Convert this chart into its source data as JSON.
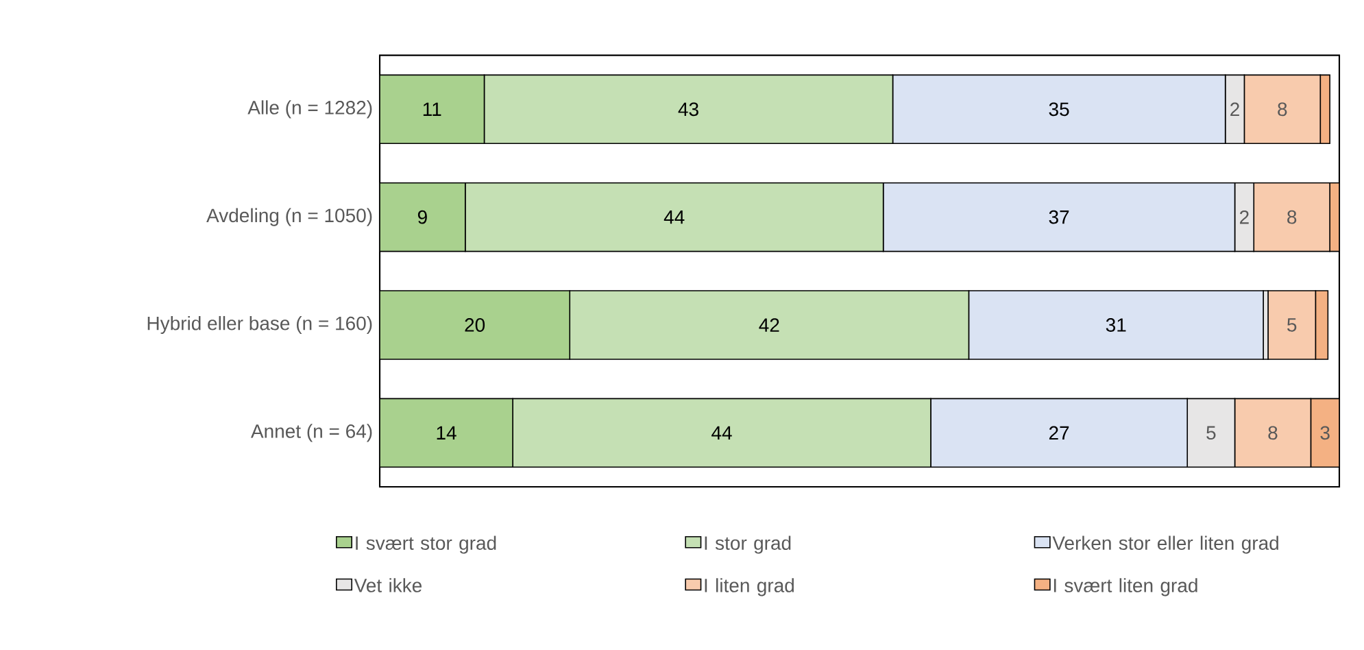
{
  "chart_data": {
    "type": "bar",
    "orientation": "horizontal",
    "stacked": true,
    "legend": "bottom",
    "categories": [
      "Alle (n = 1282)",
      "Avdeling (n = 1050)",
      "Hybrid eller base (n = 160)",
      "Annet (n = 64)"
    ],
    "series": [
      {
        "name": "I svært stor grad",
        "color": "#a9d18e",
        "values": [
          11,
          9,
          20,
          14
        ],
        "value_labels": [
          "11",
          "9",
          "20",
          "14"
        ]
      },
      {
        "name": "I stor grad",
        "color": "#c5e0b4",
        "values": [
          43,
          44,
          42,
          44
        ],
        "value_labels": [
          "43",
          "44",
          "42",
          "44"
        ]
      },
      {
        "name": "Verken stor eller liten grad",
        "color": "#dae3f3",
        "values": [
          35,
          37,
          31,
          27
        ],
        "value_labels": [
          "35",
          "37",
          "31",
          "27"
        ]
      },
      {
        "name": "Vet ikke",
        "color": "#e7e6e6",
        "values": [
          2,
          2,
          0.5,
          5
        ],
        "value_labels": [
          "2",
          "2",
          null,
          "5"
        ]
      },
      {
        "name": "I liten grad",
        "color": "#f8cbad",
        "values": [
          8,
          8,
          5,
          8
        ],
        "value_labels": [
          "8",
          "8",
          "5",
          "8"
        ]
      },
      {
        "name": "I svært liten grad",
        "color": "#f4b183",
        "values": [
          1,
          1,
          1.3,
          3
        ],
        "value_labels": [
          null,
          null,
          null,
          "3"
        ]
      }
    ]
  }
}
